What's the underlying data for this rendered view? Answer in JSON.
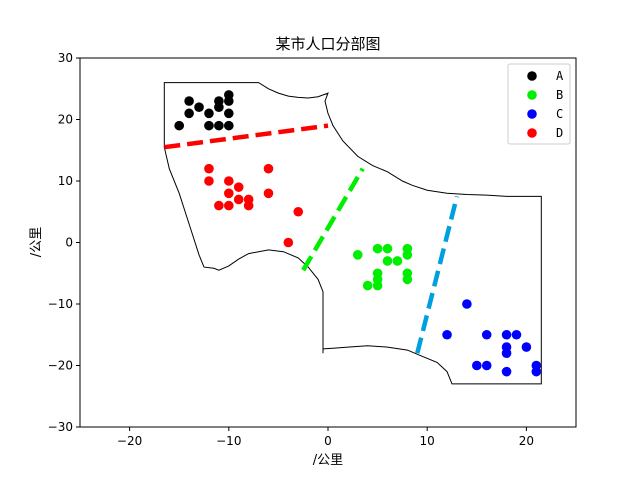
{
  "chart_data": {
    "type": "scatter",
    "title": "某市人口分部图",
    "xlabel": "/公里",
    "ylabel": "/公里",
    "xlim": [
      -25,
      25
    ],
    "ylim": [
      -30,
      30
    ],
    "xticks": [
      -20,
      -10,
      0,
      10,
      20
    ],
    "yticks": [
      -30,
      -20,
      -10,
      0,
      10,
      20,
      30
    ],
    "grid": false,
    "legend_position": "top-right",
    "series": [
      {
        "name": "A",
        "color": "#000000",
        "points": [
          [
            -15,
            19
          ],
          [
            -14,
            21
          ],
          [
            -14,
            23
          ],
          [
            -13,
            22
          ],
          [
            -12,
            19
          ],
          [
            -12,
            21
          ],
          [
            -11,
            19
          ],
          [
            -11,
            22
          ],
          [
            -11,
            23
          ],
          [
            -10,
            19
          ],
          [
            -10,
            21
          ],
          [
            -10,
            23
          ],
          [
            -10,
            24
          ]
        ]
      },
      {
        "name": "B",
        "color": "#00ee00",
        "points": [
          [
            3,
            -2
          ],
          [
            4,
            -7
          ],
          [
            5,
            -1
          ],
          [
            5,
            -5
          ],
          [
            5,
            -6
          ],
          [
            5,
            -7
          ],
          [
            6,
            -1
          ],
          [
            6,
            -3
          ],
          [
            7,
            -3
          ],
          [
            8,
            -1
          ],
          [
            8,
            -2
          ],
          [
            8,
            -5
          ],
          [
            8,
            -6
          ]
        ]
      },
      {
        "name": "C",
        "color": "#0000ff",
        "points": [
          [
            12,
            -15
          ],
          [
            14,
            -10
          ],
          [
            15,
            -20
          ],
          [
            16,
            -15
          ],
          [
            16,
            -20
          ],
          [
            18,
            -15
          ],
          [
            18,
            -17
          ],
          [
            18,
            -18
          ],
          [
            18,
            -21
          ],
          [
            19,
            -15
          ],
          [
            20,
            -17
          ],
          [
            21,
            -20
          ],
          [
            21,
            -21
          ]
        ]
      },
      {
        "name": "D",
        "color": "#ff0000",
        "points": [
          [
            -12,
            12
          ],
          [
            -12,
            10
          ],
          [
            -11,
            6
          ],
          [
            -10,
            10
          ],
          [
            -10,
            8
          ],
          [
            -10,
            6
          ],
          [
            -9,
            9
          ],
          [
            -9,
            7
          ],
          [
            -8,
            7
          ],
          [
            -8,
            6
          ],
          [
            -6,
            12
          ],
          [
            -6,
            8
          ],
          [
            -4,
            0
          ],
          [
            -3,
            5
          ]
        ]
      }
    ],
    "dividers": [
      {
        "color": "#ff0000",
        "points": [
          [
            -16.5,
            15.5
          ],
          [
            0,
            19
          ]
        ]
      },
      {
        "color": "#00ee00",
        "points": [
          [
            -2.5,
            -4.5
          ],
          [
            3.5,
            12
          ]
        ]
      },
      {
        "color": "#00a0e0",
        "points": [
          [
            9,
            -18
          ],
          [
            13,
            7.5
          ]
        ]
      }
    ],
    "boundary": [
      [
        -16.5,
        26
      ],
      [
        -7,
        26
      ],
      [
        -6,
        25
      ],
      [
        -5,
        24.3
      ],
      [
        -4,
        23.8
      ],
      [
        -3,
        23.6
      ],
      [
        -2,
        23.5
      ],
      [
        -1,
        23.7
      ],
      [
        0,
        24.3
      ],
      [
        -0.3,
        23
      ],
      [
        0,
        21
      ],
      [
        0.5,
        19
      ],
      [
        1.5,
        16.5
      ],
      [
        3,
        14
      ],
      [
        4.5,
        12.5
      ],
      [
        6,
        11.5
      ],
      [
        7.5,
        10
      ],
      [
        8.5,
        9.3
      ],
      [
        10,
        8.5
      ],
      [
        12,
        8
      ],
      [
        14,
        7.8
      ],
      [
        16,
        7.7
      ],
      [
        18,
        7.5
      ],
      [
        21.5,
        7.5
      ],
      [
        21.5,
        -23
      ],
      [
        12.5,
        -23
      ],
      [
        12,
        -21
      ],
      [
        11,
        -19.5
      ],
      [
        9.5,
        -18.5
      ],
      [
        8,
        -17.5
      ],
      [
        6,
        -17
      ],
      [
        4,
        -16.8
      ],
      [
        2,
        -17
      ],
      [
        0.5,
        -17.2
      ],
      [
        -0.5,
        -17.3
      ],
      [
        -0.5,
        -18
      ],
      [
        -0.5,
        -8
      ],
      [
        -1,
        -6
      ],
      [
        -2,
        -4
      ],
      [
        -3,
        -2.5
      ],
      [
        -4.5,
        -1.5
      ],
      [
        -6,
        -1.2
      ],
      [
        -8,
        -1.8
      ],
      [
        -9,
        -2.7
      ],
      [
        -10,
        -3.8
      ],
      [
        -11,
        -4.5
      ],
      [
        -11.5,
        -4.2
      ],
      [
        -12.5,
        -4
      ],
      [
        -13,
        -2
      ],
      [
        -14,
        3
      ],
      [
        -15,
        8
      ],
      [
        -16,
        12
      ],
      [
        -16.5,
        15.5
      ]
    ]
  }
}
